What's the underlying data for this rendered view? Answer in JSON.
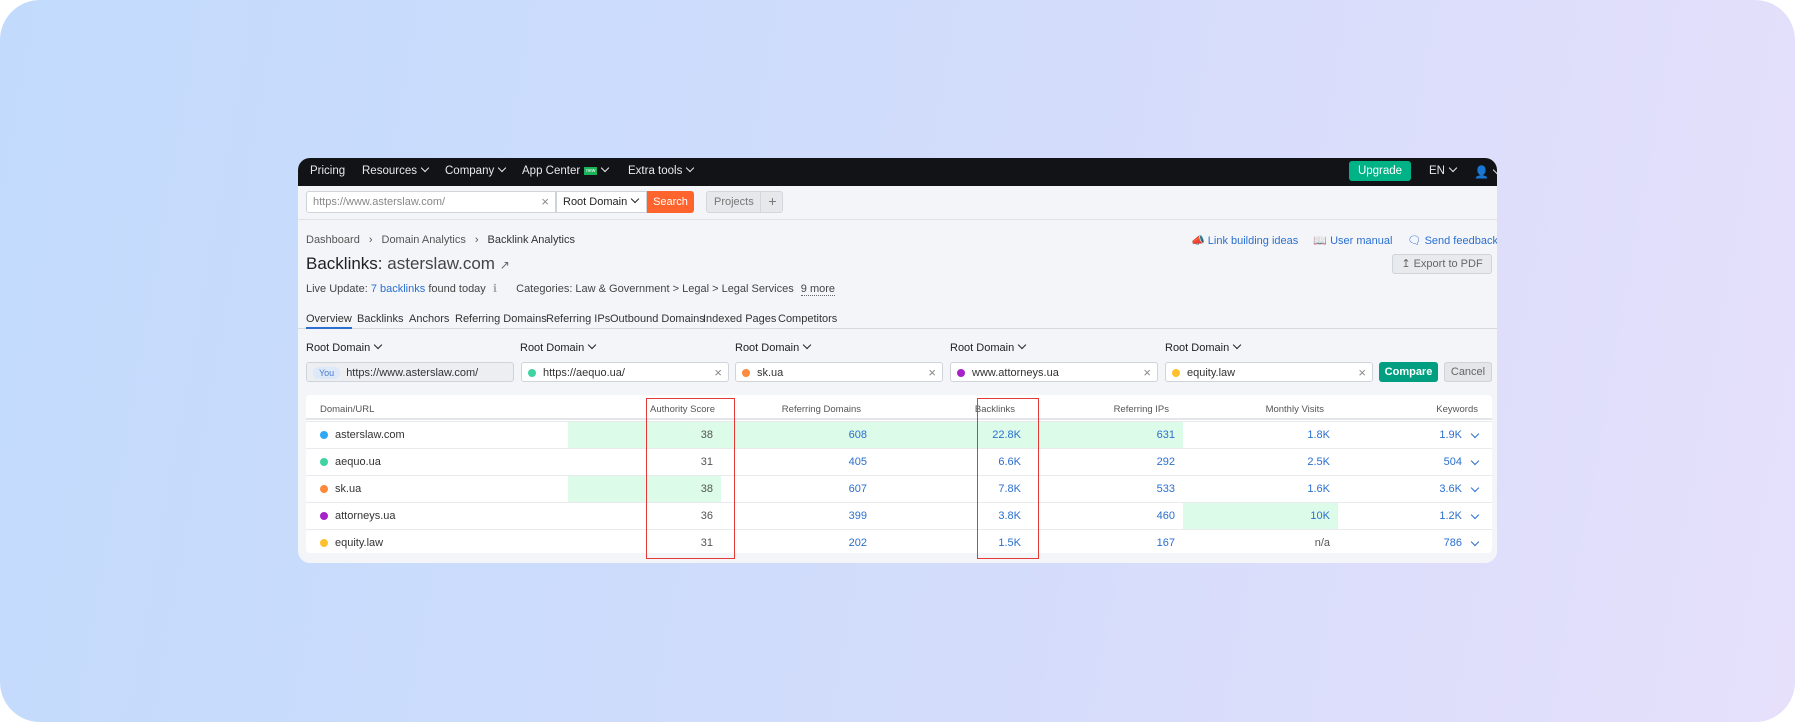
{
  "nav": {
    "items": [
      "Pricing",
      "Resources",
      "Company",
      "App Center",
      "Extra tools"
    ],
    "new_badge": "new",
    "upgrade": "Upgrade",
    "lang": "EN"
  },
  "search": {
    "value": "https://www.asterslaw.com/",
    "scope": "Root Domain",
    "button": "Search",
    "projects": "Projects",
    "plus": "+"
  },
  "breadcrumb": [
    "Dashboard",
    "Domain Analytics",
    "Backlink Analytics"
  ],
  "links": {
    "ideas": "Link building ideas",
    "manual": "User manual",
    "feedback": "Send feedback",
    "export": "Export to PDF"
  },
  "title": {
    "prefix": "Backlinks:",
    "domain": "asterslaw.com"
  },
  "live": {
    "prefix": "Live Update:",
    "link": "7 backlinks",
    "suffix": "found today",
    "categories": "Categories: Law & Government > Legal > Legal Services",
    "more": "9 more"
  },
  "tabs": [
    "Overview",
    "Backlinks",
    "Anchors",
    "Referring Domains",
    "Referring IPs",
    "Outbound Domains",
    "Indexed Pages",
    "Competitors"
  ],
  "compare": {
    "scope": "Root Domain",
    "you": "You",
    "fields": [
      "https://www.asterslaw.com/",
      "https://aequo.ua/",
      "sk.ua",
      "www.attorneys.ua",
      "equity.law"
    ],
    "colors": [
      "#2fa8f5",
      "#3fd3a0",
      "#ff8a3d",
      "#a523c8",
      "#ffc02e"
    ],
    "compare": "Compare",
    "cancel": "Cancel"
  },
  "table": {
    "headers": [
      "Domain/URL",
      "Authority Score",
      "Referring Domains",
      "Backlinks",
      "Referring IPs",
      "Monthly Visits",
      "Keywords"
    ],
    "rows": [
      [
        "asterslaw.com",
        "38",
        "608",
        "22.8K",
        "631",
        "1.8K",
        "1.9K"
      ],
      [
        "aequo.ua",
        "31",
        "405",
        "6.6K",
        "292",
        "2.5K",
        "504"
      ],
      [
        "sk.ua",
        "38",
        "607",
        "7.8K",
        "533",
        "1.6K",
        "3.6K"
      ],
      [
        "attorneys.ua",
        "36",
        "399",
        "3.8K",
        "460",
        "10K",
        "1.2K"
      ],
      [
        "equity.law",
        "31",
        "202",
        "1.5K",
        "167",
        "n/a",
        "786"
      ]
    ]
  }
}
